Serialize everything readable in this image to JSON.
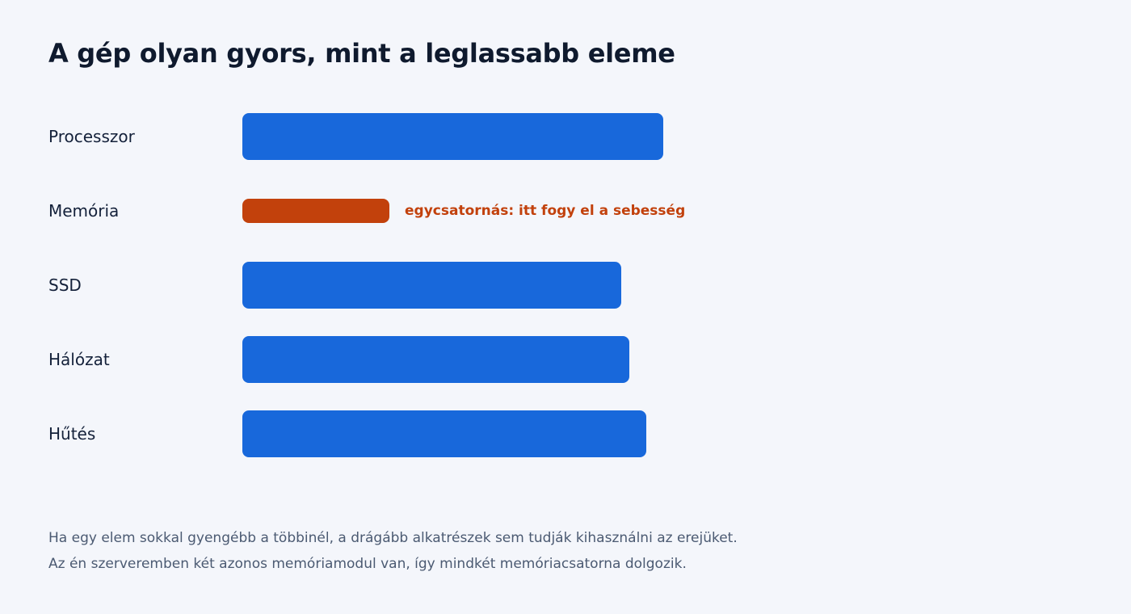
{
  "chart_data": {
    "type": "bar",
    "orientation": "horizontal",
    "title": "A gép olyan gyors, mint a leglassabb eleme",
    "xlabel": "",
    "ylabel": "",
    "categories": [
      "Processzor",
      "Memória",
      "SSD",
      "Hálózat",
      "Hűtés"
    ],
    "values": [
      100,
      35,
      90,
      92,
      96
    ],
    "xlim": [
      0,
      100
    ],
    "grid": false,
    "legend": "none",
    "colors": [
      "#1868db",
      "#c2410c",
      "#1868db",
      "#1868db",
      "#1868db"
    ],
    "highlight_index": 1,
    "annotations": [
      {
        "category": "Memória",
        "text": "egycsatornás: itt fogy el a sebesség"
      }
    ]
  },
  "footnote": {
    "line1": "Ha egy elem sokkal gyengébb a többinél, a drágább alkatrészek sem tudják kihasználni az erejüket.",
    "line2": "Az én szerveremben két azonos memóriamodul van, így mindkét memóriacsatorna dolgozik."
  }
}
